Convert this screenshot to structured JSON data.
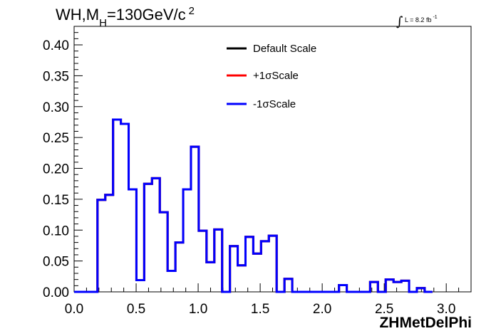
{
  "chart_data": {
    "type": "histogram",
    "title": "WH,M_H=130GeV/c^2",
    "title_parts": {
      "main": "WH,M",
      "subscript": "H",
      "rest": "=130GeV/c",
      "superscript": "2"
    },
    "luminosity": {
      "text": "L = 8.2 fb",
      "superscript": "-1"
    },
    "xlabel": "ZHMetDelPhi",
    "ylabel": "",
    "xlim": [
      0.0,
      3.2
    ],
    "ylim": [
      0.0,
      0.43
    ],
    "x_ticks": [
      "0.0",
      "0.5",
      "1.0",
      "1.5",
      "2.0",
      "2.5",
      "3.0"
    ],
    "x_tick_values": [
      0.0,
      0.5,
      1.0,
      1.5,
      2.0,
      2.5,
      3.0
    ],
    "y_ticks": [
      "0.00",
      "0.05",
      "0.10",
      "0.15",
      "0.20",
      "0.25",
      "0.30",
      "0.35",
      "0.40"
    ],
    "y_tick_values": [
      0.0,
      0.05,
      0.1,
      0.15,
      0.2,
      0.25,
      0.3,
      0.35,
      0.4
    ],
    "grid": false,
    "legend_position": "top-center",
    "bin_edges_start": 0.0,
    "bin_width": 0.0628,
    "series": [
      {
        "name": "Default Scale",
        "color": "#000000",
        "values": [
          0,
          0,
          0,
          0.149,
          0.157,
          0.279,
          0.272,
          0.166,
          0.019,
          0.175,
          0.184,
          0.129,
          0.034,
          0.08,
          0.166,
          0.235,
          0.099,
          0.048,
          0.101,
          0,
          0.074,
          0.043,
          0.089,
          0.062,
          0.082,
          0.091,
          0,
          0.021,
          0,
          0,
          0,
          0,
          0,
          0,
          0.011,
          0,
          0,
          0,
          0.016,
          0,
          0.02,
          0.016,
          0.018,
          0,
          0.006,
          0
        ]
      },
      {
        "name": "+1σScale",
        "color": "#ff0000",
        "values": [
          0,
          0,
          0,
          0.149,
          0.157,
          0.279,
          0.272,
          0.166,
          0.019,
          0.175,
          0.184,
          0.129,
          0.034,
          0.08,
          0.166,
          0.235,
          0.099,
          0.048,
          0.101,
          0,
          0.074,
          0.043,
          0.089,
          0.062,
          0.082,
          0.091,
          0,
          0.021,
          0,
          0,
          0,
          0,
          0,
          0,
          0.011,
          0,
          0,
          0,
          0.016,
          0,
          0.02,
          0.016,
          0.018,
          0,
          0.006,
          0
        ]
      },
      {
        "name": "-1σScale",
        "color": "#0000ff",
        "values": [
          0,
          0,
          0,
          0.149,
          0.157,
          0.279,
          0.272,
          0.166,
          0.019,
          0.175,
          0.184,
          0.129,
          0.034,
          0.08,
          0.166,
          0.235,
          0.099,
          0.048,
          0.101,
          0,
          0.074,
          0.043,
          0.089,
          0.062,
          0.082,
          0.091,
          0,
          0.021,
          0,
          0,
          0,
          0,
          0,
          0,
          0.011,
          0,
          0,
          0,
          0.016,
          0,
          0.02,
          0.016,
          0.018,
          0,
          0.006,
          0
        ]
      }
    ]
  }
}
